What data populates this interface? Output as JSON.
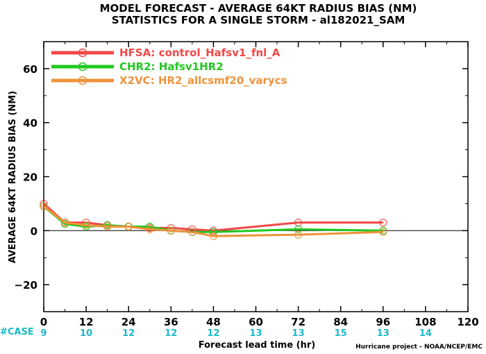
{
  "chart_data": {
    "type": "line",
    "title": "MODEL FORECAST - AVERAGE 64KT RADIUS BIAS (NM)",
    "subtitle": "STATISTICS FOR A SINGLE STORM - al182021_SAM",
    "xlabel": "Forecast lead time (hr)",
    "ylabel": "AVERAGE 64KT RADIUS BIAS (NM)",
    "xlim": [
      0,
      120
    ],
    "ylim": [
      -30,
      70
    ],
    "xticks": [
      0,
      12,
      24,
      36,
      48,
      60,
      72,
      84,
      96,
      108,
      120
    ],
    "yticks": [
      -20,
      0,
      20,
      40,
      60
    ],
    "zero_line": true,
    "grid": false,
    "legend_position": "top-left",
    "case_label": "#CASE",
    "case_counts": [
      {
        "x": 0,
        "n": "9"
      },
      {
        "x": 12,
        "n": "10"
      },
      {
        "x": 24,
        "n": "12"
      },
      {
        "x": 36,
        "n": "12"
      },
      {
        "x": 48,
        "n": "12"
      },
      {
        "x": 60,
        "n": "13"
      },
      {
        "x": 72,
        "n": "13"
      },
      {
        "x": 84,
        "n": "15"
      },
      {
        "x": 96,
        "n": "13"
      },
      {
        "x": 108,
        "n": "14"
      }
    ],
    "credit": "Hurricane project - NOAA/NCEP/EMC",
    "series": [
      {
        "name": "HFSA: control_Hafsv1_fnl_A",
        "color": "#f04848",
        "x": [
          0,
          6,
          12,
          18,
          24,
          30,
          36,
          42,
          48,
          72,
          96
        ],
        "y": [
          10,
          3,
          3,
          2,
          1.5,
          1,
          1,
          0.5,
          0,
          3,
          3
        ]
      },
      {
        "name": "CHR2: Hafsv1HR2",
        "color": "#20c820",
        "x": [
          0,
          6,
          12,
          18,
          24,
          30,
          36,
          42,
          48,
          72,
          96
        ],
        "y": [
          9,
          2.5,
          1.5,
          2,
          1.5,
          1.5,
          0,
          -0.5,
          -0.5,
          0.5,
          0
        ]
      },
      {
        "name": "X2VC: HR2_allcsmf20_varycs",
        "color": "#f0923a",
        "x": [
          0,
          6,
          12,
          18,
          24,
          30,
          36,
          42,
          48,
          72,
          96
        ],
        "y": [
          9,
          3,
          2,
          1.5,
          1.5,
          0.5,
          0,
          -0.5,
          -2,
          -1.5,
          -0.5
        ]
      }
    ]
  }
}
